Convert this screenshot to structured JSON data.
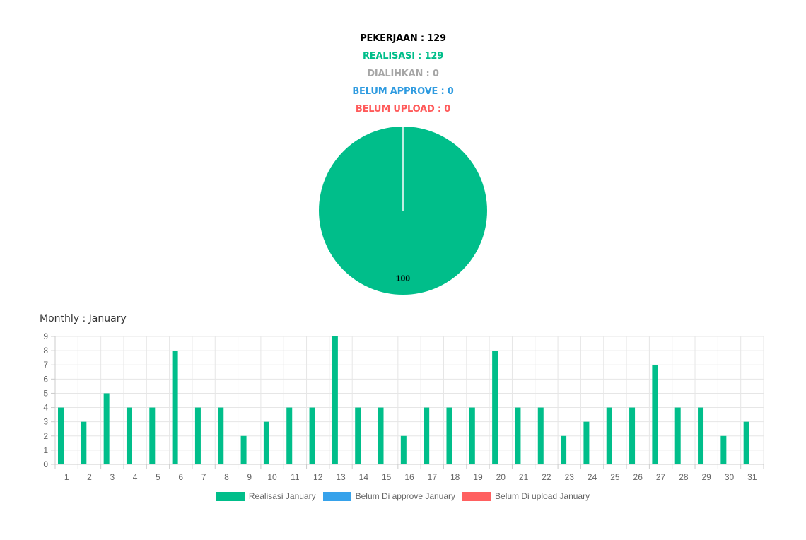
{
  "stats": [
    {
      "label": "PEKERJAAN : 129",
      "color": "#000000"
    },
    {
      "label": "REALISASI : 129",
      "color": "#00be8a"
    },
    {
      "label": "DIALIHKAN : 0",
      "color": "#a6a6a6"
    },
    {
      "label": "BELUM APPROVE : 0",
      "color": "#2f9be0"
    },
    {
      "label": "BELUM UPLOAD : 0",
      "color": "#ff5a5a"
    }
  ],
  "monthly_title": "Monthly : January",
  "colors": {
    "realisasi": "#00be8a",
    "approve": "#36a2eb",
    "upload": "#ff6060",
    "grid": "#e6e6e6",
    "axis": "#cccccc"
  },
  "chart_data": [
    {
      "type": "pie",
      "slices": [
        {
          "value": 100,
          "label": "100",
          "color": "#00be8a"
        }
      ]
    },
    {
      "type": "bar",
      "categories": [
        "1",
        "2",
        "3",
        "4",
        "5",
        "6",
        "7",
        "8",
        "9",
        "10",
        "11",
        "12",
        "13",
        "14",
        "15",
        "16",
        "17",
        "18",
        "19",
        "20",
        "21",
        "22",
        "23",
        "24",
        "25",
        "26",
        "27",
        "28",
        "29",
        "30",
        "31"
      ],
      "series": [
        {
          "name": "Realisasi January",
          "color": "#00be8a",
          "values": [
            4,
            3,
            5,
            4,
            4,
            8,
            4,
            4,
            2,
            3,
            4,
            4,
            9,
            4,
            4,
            2,
            4,
            4,
            4,
            8,
            4,
            4,
            2,
            3,
            4,
            4,
            7,
            4,
            4,
            2,
            3
          ]
        },
        {
          "name": "Belum Di approve January",
          "color": "#36a2eb",
          "values": [
            0,
            0,
            0,
            0,
            0,
            0,
            0,
            0,
            0,
            0,
            0,
            0,
            0,
            0,
            0,
            0,
            0,
            0,
            0,
            0,
            0,
            0,
            0,
            0,
            0,
            0,
            0,
            0,
            0,
            0,
            0
          ]
        },
        {
          "name": "Belum Di upload January",
          "color": "#ff6060",
          "values": [
            0,
            0,
            0,
            0,
            0,
            0,
            0,
            0,
            0,
            0,
            0,
            0,
            0,
            0,
            0,
            0,
            0,
            0,
            0,
            0,
            0,
            0,
            0,
            0,
            0,
            0,
            0,
            0,
            0,
            0,
            0
          ]
        }
      ],
      "ylim": [
        0,
        9
      ],
      "yticks": [
        "0",
        "1",
        "2",
        "3",
        "4",
        "5",
        "6",
        "7",
        "8",
        "9"
      ],
      "grid": true,
      "legend": "bottom"
    }
  ]
}
